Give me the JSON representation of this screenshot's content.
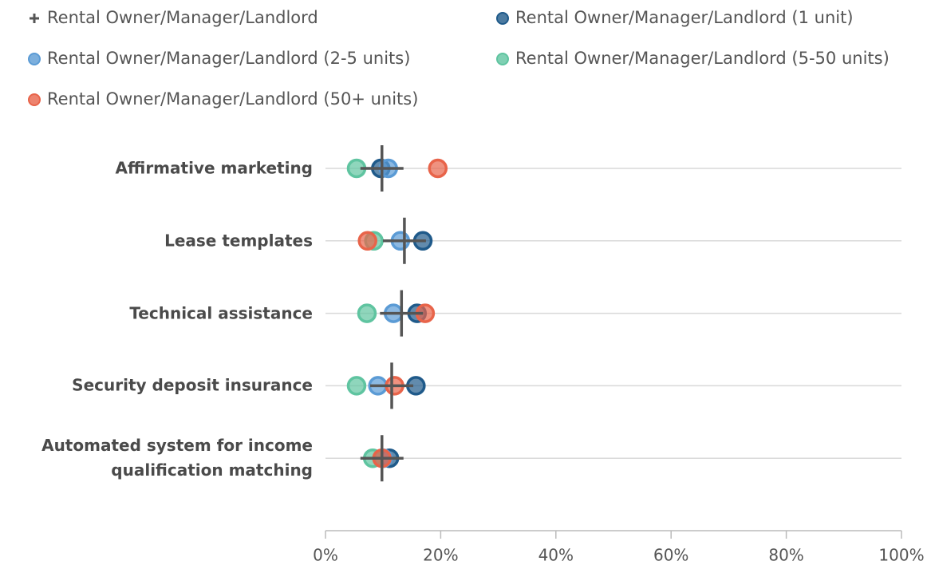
{
  "chart_data": {
    "type": "dot",
    "categories": [
      "Affirmative marketing",
      "Lease templates",
      "Technical assistance",
      "Security deposit insurance",
      "Automated system for income qualification matching"
    ],
    "series": [
      {
        "name": "Rental Owner/Manager/Landlord",
        "marker": "cross",
        "color": "#555555",
        "values": [
          9.8,
          13.7,
          13.2,
          11.5,
          9.8
        ]
      },
      {
        "name": "Rental Owner/Manager/Landlord (1 unit)",
        "marker": "circle",
        "color": "#1f5a8a",
        "values": [
          9.6,
          16.9,
          15.9,
          15.7,
          11.1
        ]
      },
      {
        "name": "Rental Owner/Manager/Landlord (2-5 units)",
        "marker": "circle",
        "color": "#5b9bd5",
        "values": [
          10.9,
          13.0,
          11.8,
          9.1,
          10.0
        ]
      },
      {
        "name": "Rental Owner/Manager/Landlord (5-50 units)",
        "marker": "circle",
        "color": "#5fc4a0",
        "values": [
          5.4,
          8.4,
          7.2,
          5.4,
          8.2
        ]
      },
      {
        "name": "Rental Owner/Manager/Landlord (50+ units)",
        "marker": "circle",
        "color": "#e8644a",
        "values": [
          19.5,
          7.3,
          17.3,
          12.0,
          9.8
        ]
      }
    ],
    "xlim": [
      0,
      100
    ],
    "xticks": [
      {
        "value": 0,
        "label": "0%"
      },
      {
        "value": 20,
        "label": "20%"
      },
      {
        "value": 40,
        "label": "40%"
      },
      {
        "value": 60,
        "label": "60%"
      },
      {
        "value": 80,
        "label": "80%"
      },
      {
        "value": 100,
        "label": "100%"
      }
    ],
    "grid": true
  }
}
